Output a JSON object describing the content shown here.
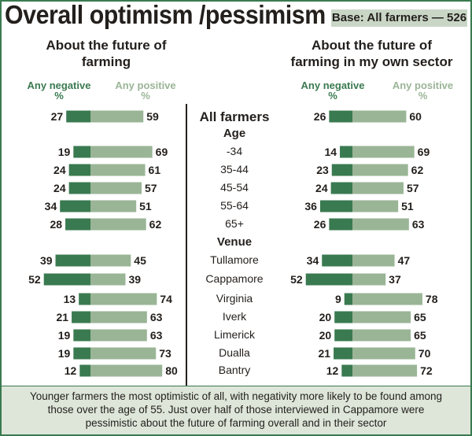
{
  "header": {
    "title": "Overall optimism /pessimism",
    "base_label": "Base: All farmers — 526"
  },
  "panels": [
    {
      "title_line1": "About the future of",
      "title_line2": "farming",
      "neg_label": "Any negative",
      "pos_label": "Any positive",
      "unit": "%"
    },
    {
      "title_line1": "About the future of",
      "title_line2": "farming in my own sector",
      "neg_label": "Any negative",
      "pos_label": "Any positive",
      "unit": "%"
    }
  ],
  "rows": [
    {
      "label": "All farmers",
      "kind": "total"
    },
    {
      "label": "Age",
      "kind": "heading"
    },
    {
      "label": "-34",
      "kind": "item"
    },
    {
      "label": "35-44",
      "kind": "item"
    },
    {
      "label": "45-54",
      "kind": "item"
    },
    {
      "label": "55-64",
      "kind": "item"
    },
    {
      "label": "65+",
      "kind": "item"
    },
    {
      "label": "Venue",
      "kind": "heading"
    },
    {
      "label": "Tullamore",
      "kind": "item"
    },
    {
      "label": "Cappamore",
      "kind": "item"
    },
    {
      "label": "Virginia",
      "kind": "item"
    },
    {
      "label": "Iverk",
      "kind": "item"
    },
    {
      "label": "Limerick",
      "kind": "item"
    },
    {
      "label": "Dualla",
      "kind": "item"
    },
    {
      "label": "Bantry",
      "kind": "item"
    }
  ],
  "colors": {
    "negative": "#3a7a50",
    "positive": "#9ab596",
    "text": "#231f1c"
  },
  "chart_data": [
    {
      "type": "bar",
      "title": "About the future of farming",
      "categories": [
        "All farmers",
        "-34",
        "35-44",
        "45-54",
        "55-64",
        "65+",
        "Tullamore",
        "Cappamore",
        "Virginia",
        "Iverk",
        "Limerick",
        "Dualla",
        "Bantry"
      ],
      "series": [
        {
          "name": "Any negative %",
          "values": [
            27,
            19,
            24,
            24,
            34,
            28,
            39,
            52,
            13,
            21,
            19,
            19,
            12
          ]
        },
        {
          "name": "Any positive %",
          "values": [
            59,
            69,
            61,
            57,
            51,
            62,
            45,
            39,
            74,
            63,
            63,
            73,
            80
          ]
        }
      ],
      "xlabel": "",
      "ylabel": "%"
    },
    {
      "type": "bar",
      "title": "About the future of farming in my own sector",
      "categories": [
        "All farmers",
        "-34",
        "35-44",
        "45-54",
        "55-64",
        "65+",
        "Tullamore",
        "Cappamore",
        "Virginia",
        "Iverk",
        "Limerick",
        "Dualla",
        "Bantry"
      ],
      "series": [
        {
          "name": "Any negative %",
          "values": [
            26,
            14,
            23,
            24,
            36,
            26,
            34,
            52,
            9,
            20,
            20,
            21,
            12
          ]
        },
        {
          "name": "Any positive %",
          "values": [
            60,
            69,
            62,
            57,
            51,
            63,
            47,
            37,
            78,
            65,
            65,
            70,
            72
          ]
        }
      ],
      "xlabel": "",
      "ylabel": "%"
    }
  ],
  "footer": {
    "line1": "Younger farmers the most optimistic of all, with negativity more likely to be found among",
    "line2": "those over the age of 55. Just over half of those interviewed in Cappamore were",
    "line3": "pessimistic about the future of farming overall and in their sector"
  }
}
